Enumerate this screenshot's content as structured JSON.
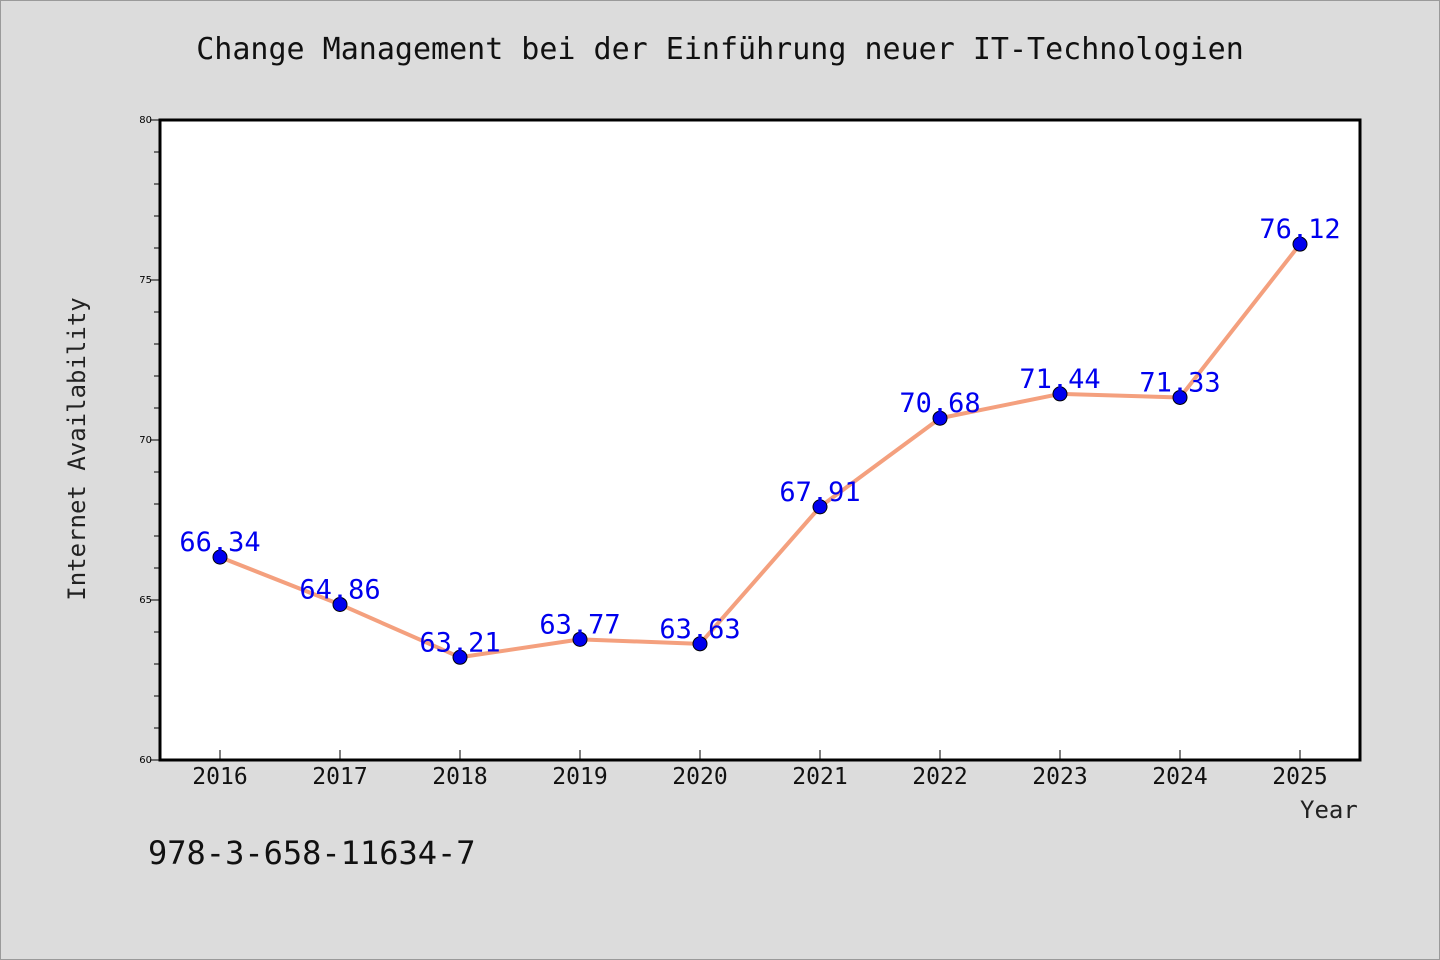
{
  "chart_data": {
    "type": "line",
    "title": "Change Management bei der Einführung neuer IT-Technologien",
    "xlabel": "Year",
    "ylabel": "Internet Availability",
    "categories": [
      "2016",
      "2017",
      "2018",
      "2019",
      "2020",
      "2021",
      "2022",
      "2023",
      "2024",
      "2025"
    ],
    "series": [
      {
        "values": [
          66.34,
          64.86,
          63.21,
          63.77,
          63.63,
          67.91,
          70.68,
          71.44,
          71.33,
          76.12
        ],
        "line_color": "#f4a07e",
        "marker_color": "#0000ee",
        "label_color": "#0000ee"
      }
    ],
    "ylim": [
      60,
      80
    ],
    "y_ticks": [
      60,
      65,
      70,
      75,
      80
    ],
    "grid": false,
    "data_labels": true
  },
  "footer": {
    "text": "978-3-658-11634-7"
  }
}
